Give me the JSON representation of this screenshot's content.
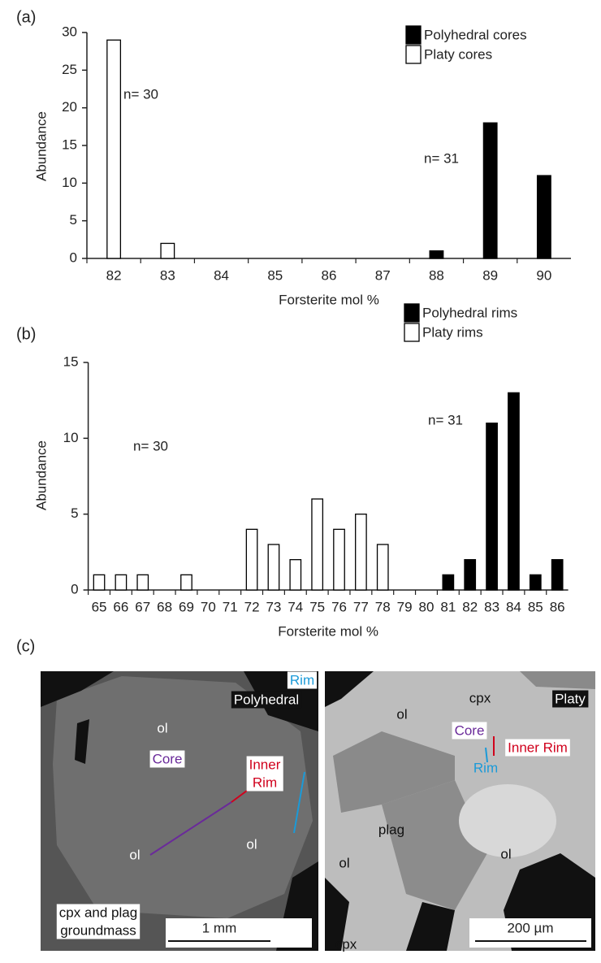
{
  "panel_labels": [
    "(a)",
    "(b)",
    "(c)"
  ],
  "chart_data": [
    {
      "type": "bar",
      "x_label": "Forsterite mol %",
      "y_label": "Abundance",
      "categories": [
        "82",
        "83",
        "84",
        "85",
        "86",
        "87",
        "88",
        "89",
        "90"
      ],
      "series": [
        {
          "name": "Polyhedral cores",
          "color": "#000000",
          "values": [
            0,
            0,
            0,
            0,
            0,
            0,
            1,
            18,
            11
          ]
        },
        {
          "name": "Platy cores",
          "color": "#ffffff",
          "values": [
            29,
            2,
            0,
            0,
            0,
            0,
            0,
            0,
            0
          ]
        }
      ],
      "ylim": [
        0,
        30
      ],
      "yticks": [
        0,
        5,
        10,
        15,
        20,
        25,
        30
      ],
      "annotations": [
        "n= 30",
        "n= 31"
      ]
    },
    {
      "type": "bar",
      "x_label": "Forsterite mol %",
      "y_label": "Abundance",
      "categories": [
        "65",
        "66",
        "67",
        "68",
        "69",
        "70",
        "71",
        "72",
        "73",
        "74",
        "75",
        "76",
        "77",
        "78",
        "79",
        "80",
        "81",
        "82",
        "83",
        "84",
        "85",
        "86"
      ],
      "series": [
        {
          "name": "Polyhedral rims",
          "color": "#000000",
          "values": [
            0,
            0,
            0,
            0,
            0,
            0,
            0,
            0,
            0,
            0,
            0,
            0,
            0,
            0,
            0,
            0,
            1,
            2,
            11,
            13,
            1,
            2
          ]
        },
        {
          "name": "Platy rims",
          "color": "#ffffff",
          "values": [
            1,
            1,
            1,
            0,
            1,
            0,
            0,
            4,
            3,
            2,
            6,
            4,
            5,
            3,
            0,
            0,
            0,
            0,
            0,
            0,
            0,
            0
          ]
        }
      ],
      "ylim": [
        0,
        15
      ],
      "yticks": [
        0,
        5,
        10,
        15
      ],
      "annotations": [
        "n= 30",
        "n= 31"
      ]
    }
  ],
  "images": [
    {
      "labels": [
        [
          "Polyhedral"
        ],
        [
          "ol"
        ],
        [
          "Rim"
        ],
        [
          "Inner",
          "Rim"
        ],
        [
          "Core"
        ],
        [
          "ol"
        ],
        [
          "ol"
        ],
        [
          "cpx and plag",
          "groundmass"
        ]
      ],
      "scale_bar": "1 mm"
    },
    {
      "labels": [
        [
          "cpx"
        ],
        [
          "Platy"
        ],
        [
          "ol"
        ],
        [
          "Core"
        ],
        [
          "Inner Rim"
        ],
        [
          "Rim"
        ],
        [
          "plag"
        ],
        [
          "ol"
        ],
        [
          "ol"
        ],
        [
          "cpx"
        ]
      ],
      "scale_bar": "200 µm"
    }
  ]
}
